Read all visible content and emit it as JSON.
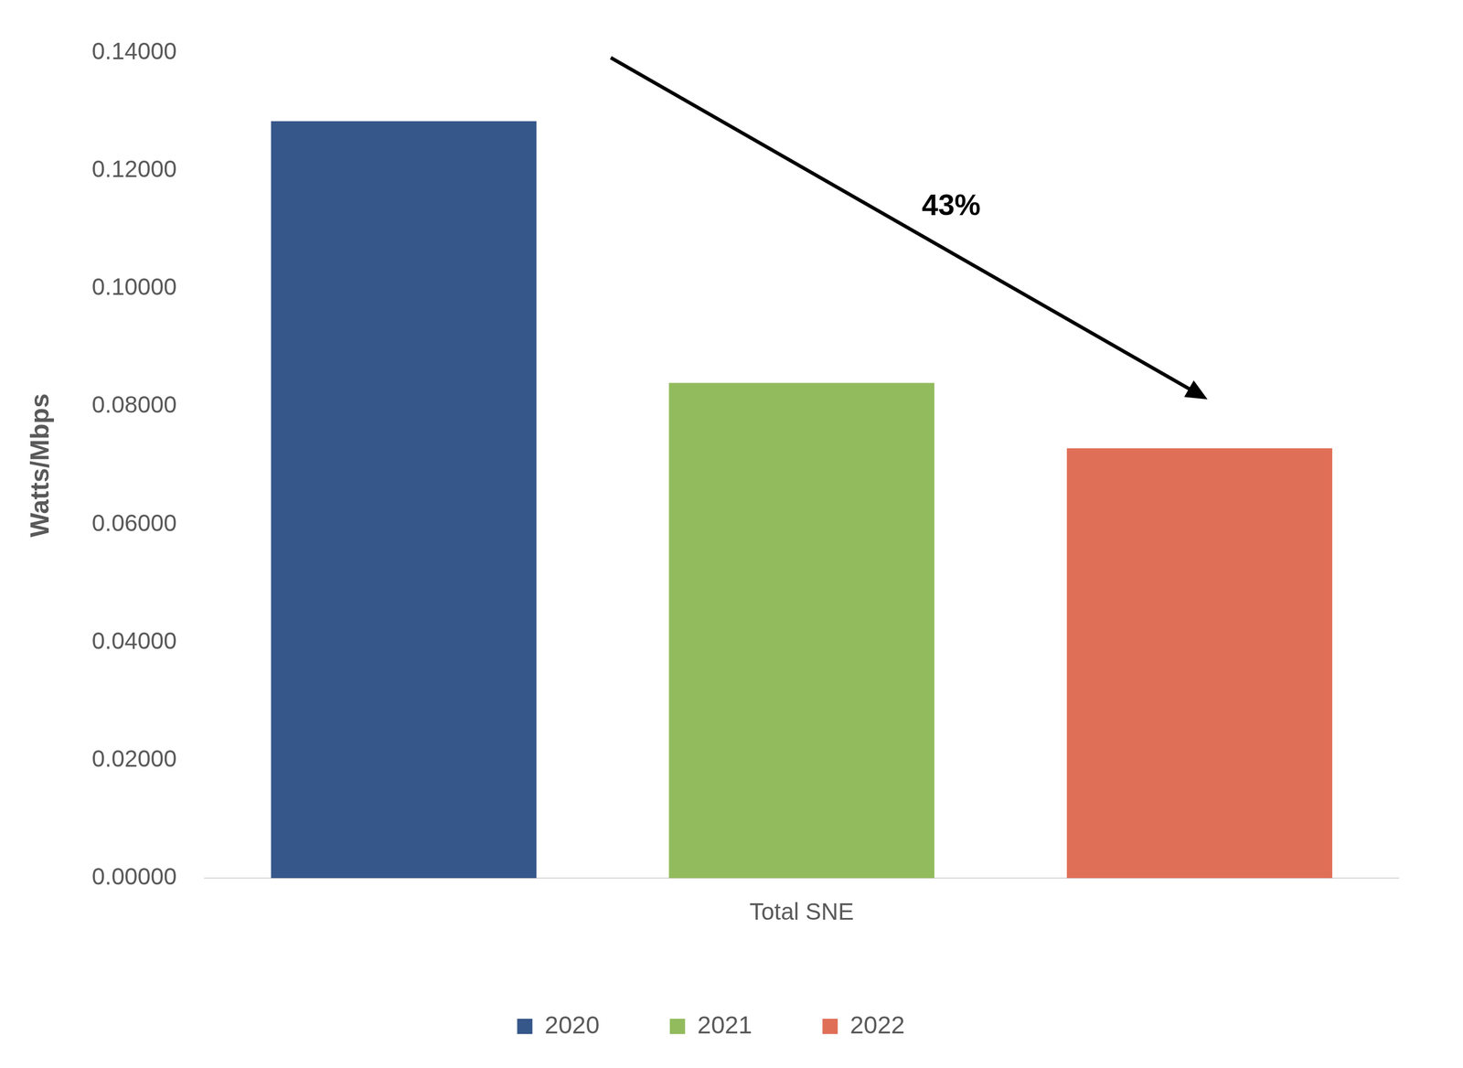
{
  "chart_data": {
    "type": "bar",
    "y_label": "Watts/Mbps",
    "categories": [
      "Total SNE"
    ],
    "series": [
      {
        "name": "2020",
        "color": "#36578a",
        "values": [
          0.1284
        ]
      },
      {
        "name": "2021",
        "color": "#92bb5d",
        "values": [
          0.084
        ]
      },
      {
        "name": "2022",
        "color": "#e06f58",
        "values": [
          0.0729
        ]
      }
    ],
    "ylim": [
      0,
      0.14
    ],
    "yticks": [
      {
        "value": 0,
        "label": "0.00000"
      },
      {
        "value": 0.02,
        "label": "0.02000"
      },
      {
        "value": 0.04,
        "label": "0.04000"
      },
      {
        "value": 0.06,
        "label": "0.06000"
      },
      {
        "value": 0.08,
        "label": "0.08000"
      },
      {
        "value": 0.1,
        "label": "0.10000"
      },
      {
        "value": 0.12,
        "label": "0.12000"
      },
      {
        "value": 0.14,
        "label": "0.14000"
      }
    ],
    "grid": false,
    "legend": "bottom",
    "annotations": [
      {
        "text": "43%"
      }
    ]
  }
}
